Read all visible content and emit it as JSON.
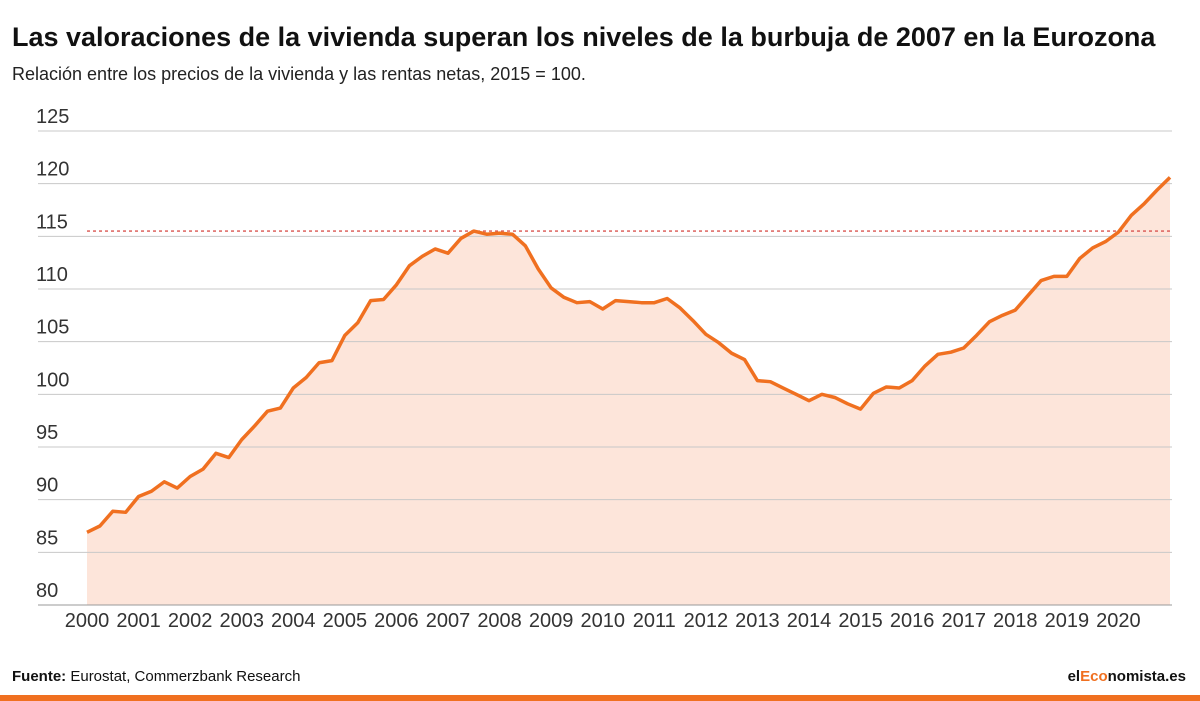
{
  "chart_data": {
    "type": "area",
    "title": "Las valoraciones de la vivienda superan los niveles de la burbuja de 2007 en la Eurozona",
    "subtitle": "Relación entre los precios de la vivienda y las rentas netas, 2015 = 100.",
    "source_label": "Fuente:",
    "source": "Eurostat, Commerzbank Research",
    "brand_parts": [
      "el",
      "Eco",
      "nomista.es"
    ],
    "color": "#f07020",
    "fill_color": "#fde5da",
    "reference_line": 115.5,
    "reference_color": "#d9534f",
    "x": [
      2000,
      2000.25,
      2000.5,
      2000.75,
      2001,
      2001.25,
      2001.5,
      2001.75,
      2002,
      2002.25,
      2002.5,
      2002.75,
      2003,
      2003.25,
      2003.5,
      2003.75,
      2004,
      2004.25,
      2004.5,
      2004.75,
      2005,
      2005.25,
      2005.5,
      2005.75,
      2006,
      2006.25,
      2006.5,
      2006.75,
      2007,
      2007.25,
      2007.5,
      2007.75,
      2008,
      2008.25,
      2008.5,
      2008.75,
      2009,
      2009.25,
      2009.5,
      2009.75,
      2010,
      2010.25,
      2010.5,
      2010.75,
      2011,
      2011.25,
      2011.5,
      2011.75,
      2012,
      2012.25,
      2012.5,
      2012.75,
      2013,
      2013.25,
      2013.5,
      2013.75,
      2014,
      2014.25,
      2014.5,
      2014.75,
      2015,
      2015.25,
      2015.5,
      2015.75,
      2016,
      2016.25,
      2016.5,
      2016.75,
      2017,
      2017.25,
      2017.5,
      2017.75,
      2018,
      2018.25,
      2018.5,
      2018.75,
      2019,
      2019.25,
      2019.5,
      2019.75,
      2020,
      2020.25,
      2020.5,
      2020.75,
      2021
    ],
    "values": [
      86.9,
      87.5,
      88.9,
      88.8,
      90.3,
      90.8,
      91.7,
      91.1,
      92.2,
      92.9,
      94.4,
      94.0,
      95.7,
      97.0,
      98.4,
      98.7,
      100.6,
      101.6,
      103.0,
      103.2,
      105.6,
      106.8,
      108.9,
      109.0,
      110.4,
      112.2,
      113.1,
      113.8,
      113.4,
      114.8,
      115.5,
      115.2,
      115.3,
      115.2,
      114.1,
      111.9,
      110.1,
      109.2,
      108.7,
      108.8,
      108.1,
      108.9,
      108.8,
      108.7,
      108.7,
      109.1,
      108.2,
      107.0,
      105.7,
      104.9,
      103.9,
      103.3,
      101.3,
      101.2,
      100.6,
      100.0,
      99.4,
      100.0,
      99.7,
      99.1,
      98.6,
      100.1,
      100.7,
      100.6,
      101.3,
      102.7,
      103.8,
      104.0,
      104.4,
      105.6,
      106.9,
      107.5,
      108.0,
      109.4,
      110.8,
      111.2,
      111.2,
      112.9,
      113.9,
      114.5,
      115.4,
      117.0,
      118.1,
      119.4,
      120.6
    ],
    "xlim": [
      2000,
      2021
    ],
    "xticks": [
      2000,
      2001,
      2002,
      2003,
      2004,
      2005,
      2006,
      2007,
      2008,
      2009,
      2010,
      2011,
      2012,
      2013,
      2014,
      2015,
      2016,
      2017,
      2018,
      2019,
      2020
    ],
    "ylim": [
      80,
      125
    ],
    "yticks": [
      80,
      85,
      90,
      95,
      100,
      105,
      110,
      115,
      120,
      125
    ],
    "grid": true
  }
}
